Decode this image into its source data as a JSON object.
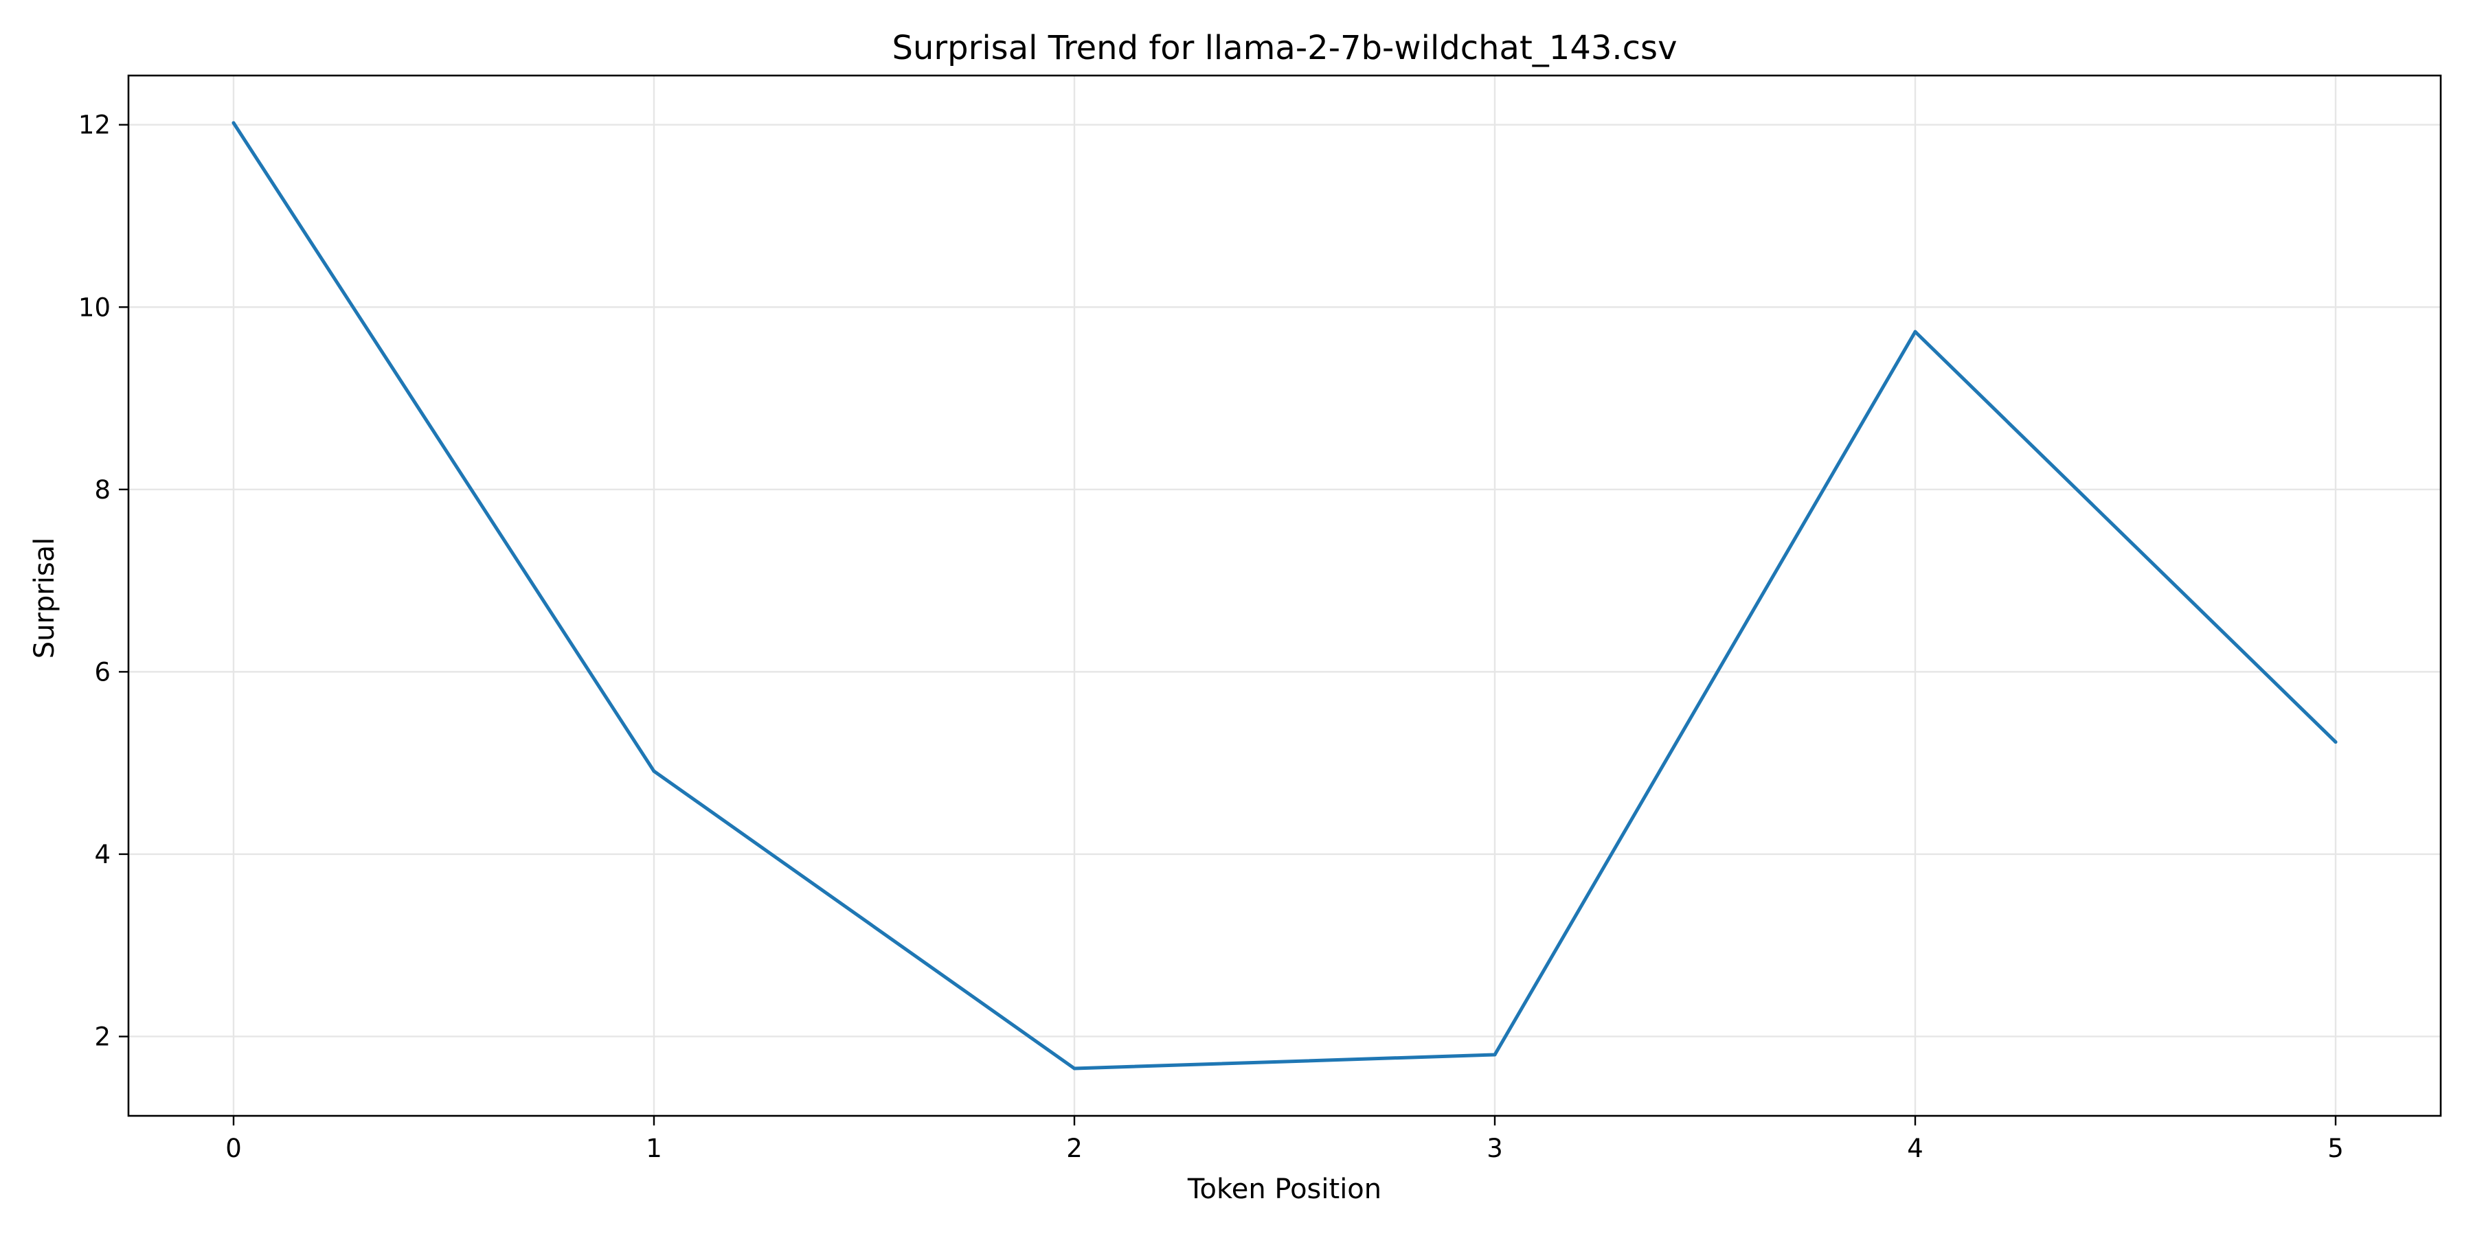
{
  "chart_data": {
    "type": "line",
    "title": "Surprisal Trend for llama-2-7b-wildchat_143.csv",
    "xlabel": "Token Position",
    "ylabel": "Surprisal",
    "x": [
      0,
      1,
      2,
      3,
      4,
      5
    ],
    "series": [
      {
        "values": [
          12.02,
          4.91,
          1.65,
          1.8,
          9.73,
          5.23
        ]
      }
    ],
    "xticks": [
      0,
      1,
      2,
      3,
      4,
      5
    ],
    "yticks": [
      2,
      4,
      6,
      8,
      10,
      12
    ],
    "xlim": [
      -0.25,
      5.25
    ],
    "ylim": [
      1.13,
      12.54
    ],
    "grid": true,
    "line_color": "#1f77b4"
  }
}
